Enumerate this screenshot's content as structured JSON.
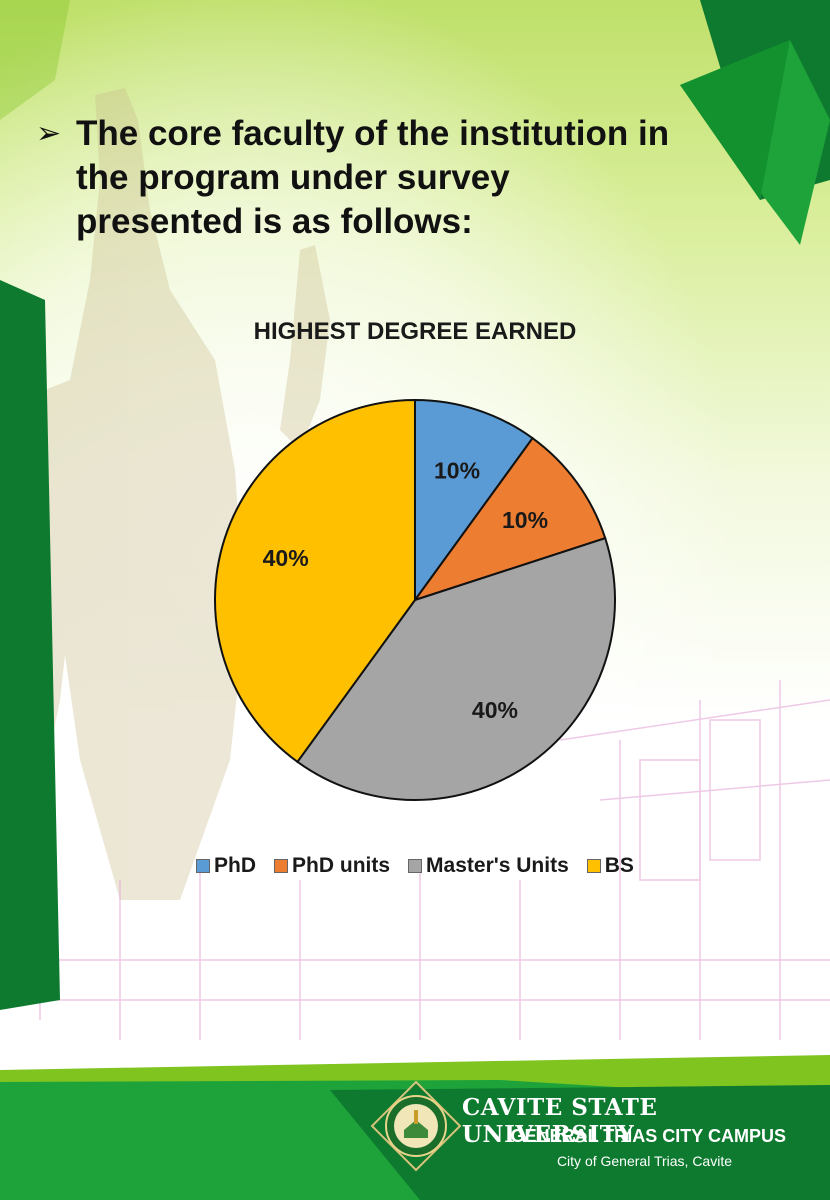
{
  "heading": {
    "bullet": "➢",
    "text": "The core faculty of the institution in the program under survey presented is as follows:"
  },
  "chart_data": {
    "type": "pie",
    "title": "HIGHEST DEGREE EARNED",
    "categories": [
      "PhD",
      "PhD units",
      "Master's Units",
      "BS"
    ],
    "values": [
      10,
      10,
      40,
      40
    ],
    "labels": [
      "10%",
      "10%",
      "40%",
      "40%"
    ],
    "colors": [
      "#5b9bd5",
      "#ed7d31",
      "#a5a5a5",
      "#ffc000"
    ],
    "legend_position": "bottom"
  },
  "footer": {
    "university": "CAVITE STATE UNIVERSITY",
    "campus": "GENERAL TRIAS CITY CAMPUS",
    "city": "City of General Trias, Cavite"
  },
  "theme": {
    "dark_green": "#0e7a2f",
    "mid_green": "#1ea33a",
    "light_green": "#7fc41f"
  }
}
